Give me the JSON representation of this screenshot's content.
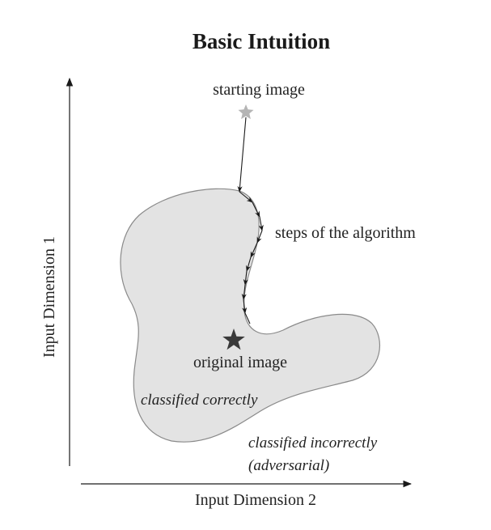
{
  "title": "Basic Intuition",
  "axes": {
    "y_label": "Input Dimension 1",
    "x_label": "Input Dimension 2"
  },
  "labels": {
    "starting_image": "starting image",
    "steps": "steps of the algorithm",
    "original_image": "original image",
    "classified_correctly": "classified correctly",
    "classified_incorrectly_line1": "classified incorrectly",
    "classified_incorrectly_line2": "(adversarial)"
  },
  "colors": {
    "region_fill": "#e3e3e3",
    "region_stroke": "#8a8a8a",
    "starting_star": "#b5b5b5",
    "original_star": "#3a3a3a",
    "path": "#1a1a1a",
    "axis": "#1a1a1a"
  }
}
